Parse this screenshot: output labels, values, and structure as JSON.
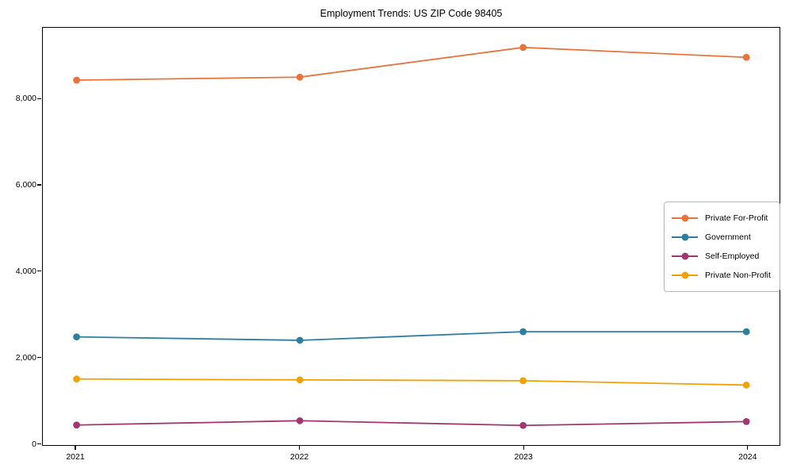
{
  "title": "Employment Trends: US ZIP Code 98405",
  "chart_data": {
    "type": "line",
    "title": "Employment Trends: US ZIP Code 98405",
    "xlabel": "",
    "ylabel": "",
    "categories": [
      "2021",
      "2022",
      "2023",
      "2024"
    ],
    "series": [
      {
        "name": "Private For-Profit",
        "color": "#E8743B",
        "values": [
          8440,
          8510,
          9200,
          8970
        ]
      },
      {
        "name": "Government",
        "color": "#2E7F9E",
        "values": [
          2470,
          2390,
          2590,
          2590
        ]
      },
      {
        "name": "Self-Employed",
        "color": "#A23670",
        "values": [
          420,
          520,
          410,
          500
        ]
      },
      {
        "name": "Private Non-Profit",
        "color": "#F2A104",
        "values": [
          1490,
          1470,
          1450,
          1350
        ]
      }
    ],
    "ylim": [
      0,
      9650
    ],
    "y_ticks": [
      {
        "value": 0,
        "label": "0"
      },
      {
        "value": 2000,
        "label": "2,000"
      },
      {
        "value": 4000,
        "label": "4,000"
      },
      {
        "value": 6000,
        "label": "6,000"
      },
      {
        "value": 8000,
        "label": "8,000"
      }
    ],
    "grid": false,
    "legend_position": "center-right",
    "marker": "circle"
  }
}
